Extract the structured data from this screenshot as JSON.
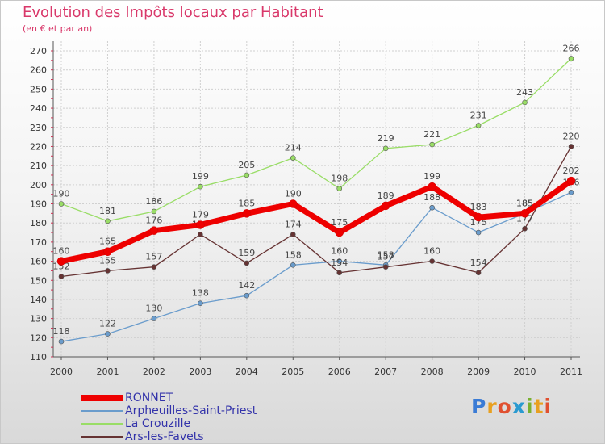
{
  "logo": {
    "letters": [
      {
        "ch": "P",
        "color": "#3a7bd5"
      },
      {
        "ch": "r",
        "color": "#e8a020"
      },
      {
        "ch": "o",
        "color": "#e05030"
      },
      {
        "ch": "x",
        "color": "#2a9ad0"
      },
      {
        "ch": "i",
        "color": "#7ab030"
      },
      {
        "ch": "t",
        "color": "#e8a020"
      },
      {
        "ch": "i",
        "color": "#e05030"
      }
    ]
  },
  "chart_data": {
    "type": "line",
    "title": "Evolution des Impôts locaux par Habitant",
    "subtitle": "(en € et par an)",
    "xlabel": "",
    "ylabel": "",
    "categories": [
      "2000",
      "2001",
      "2002",
      "2003",
      "2004",
      "2005",
      "2006",
      "2007",
      "2008",
      "2009",
      "2010",
      "2011"
    ],
    "ylim": [
      110,
      270
    ],
    "yticks": [
      110,
      120,
      130,
      140,
      150,
      160,
      170,
      180,
      190,
      200,
      210,
      220,
      230,
      240,
      250,
      260,
      270
    ],
    "grid": true,
    "legend_position": "bottom-left",
    "series": [
      {
        "name": "RONNET",
        "color": "#ee0000",
        "width": "thick",
        "values": [
          160,
          165,
          176,
          179,
          185,
          190,
          175,
          189,
          199,
          183,
          185,
          202
        ]
      },
      {
        "name": "Arpheuilles-Saint-Priest",
        "color": "#6a9ccc",
        "width": "thin",
        "values": [
          118,
          122,
          130,
          138,
          142,
          158,
          160,
          158,
          188,
          175,
          185,
          196
        ]
      },
      {
        "name": "La Crouzille",
        "color": "#99dd66",
        "width": "thin",
        "values": [
          190,
          181,
          186,
          199,
          205,
          214,
          198,
          219,
          221,
          231,
          243,
          266
        ]
      },
      {
        "name": "Ars-les-Favets",
        "color": "#663333",
        "width": "thin",
        "values": [
          152,
          155,
          157,
          174,
          159,
          174,
          154,
          157,
          160,
          154,
          177,
          220
        ]
      }
    ]
  }
}
